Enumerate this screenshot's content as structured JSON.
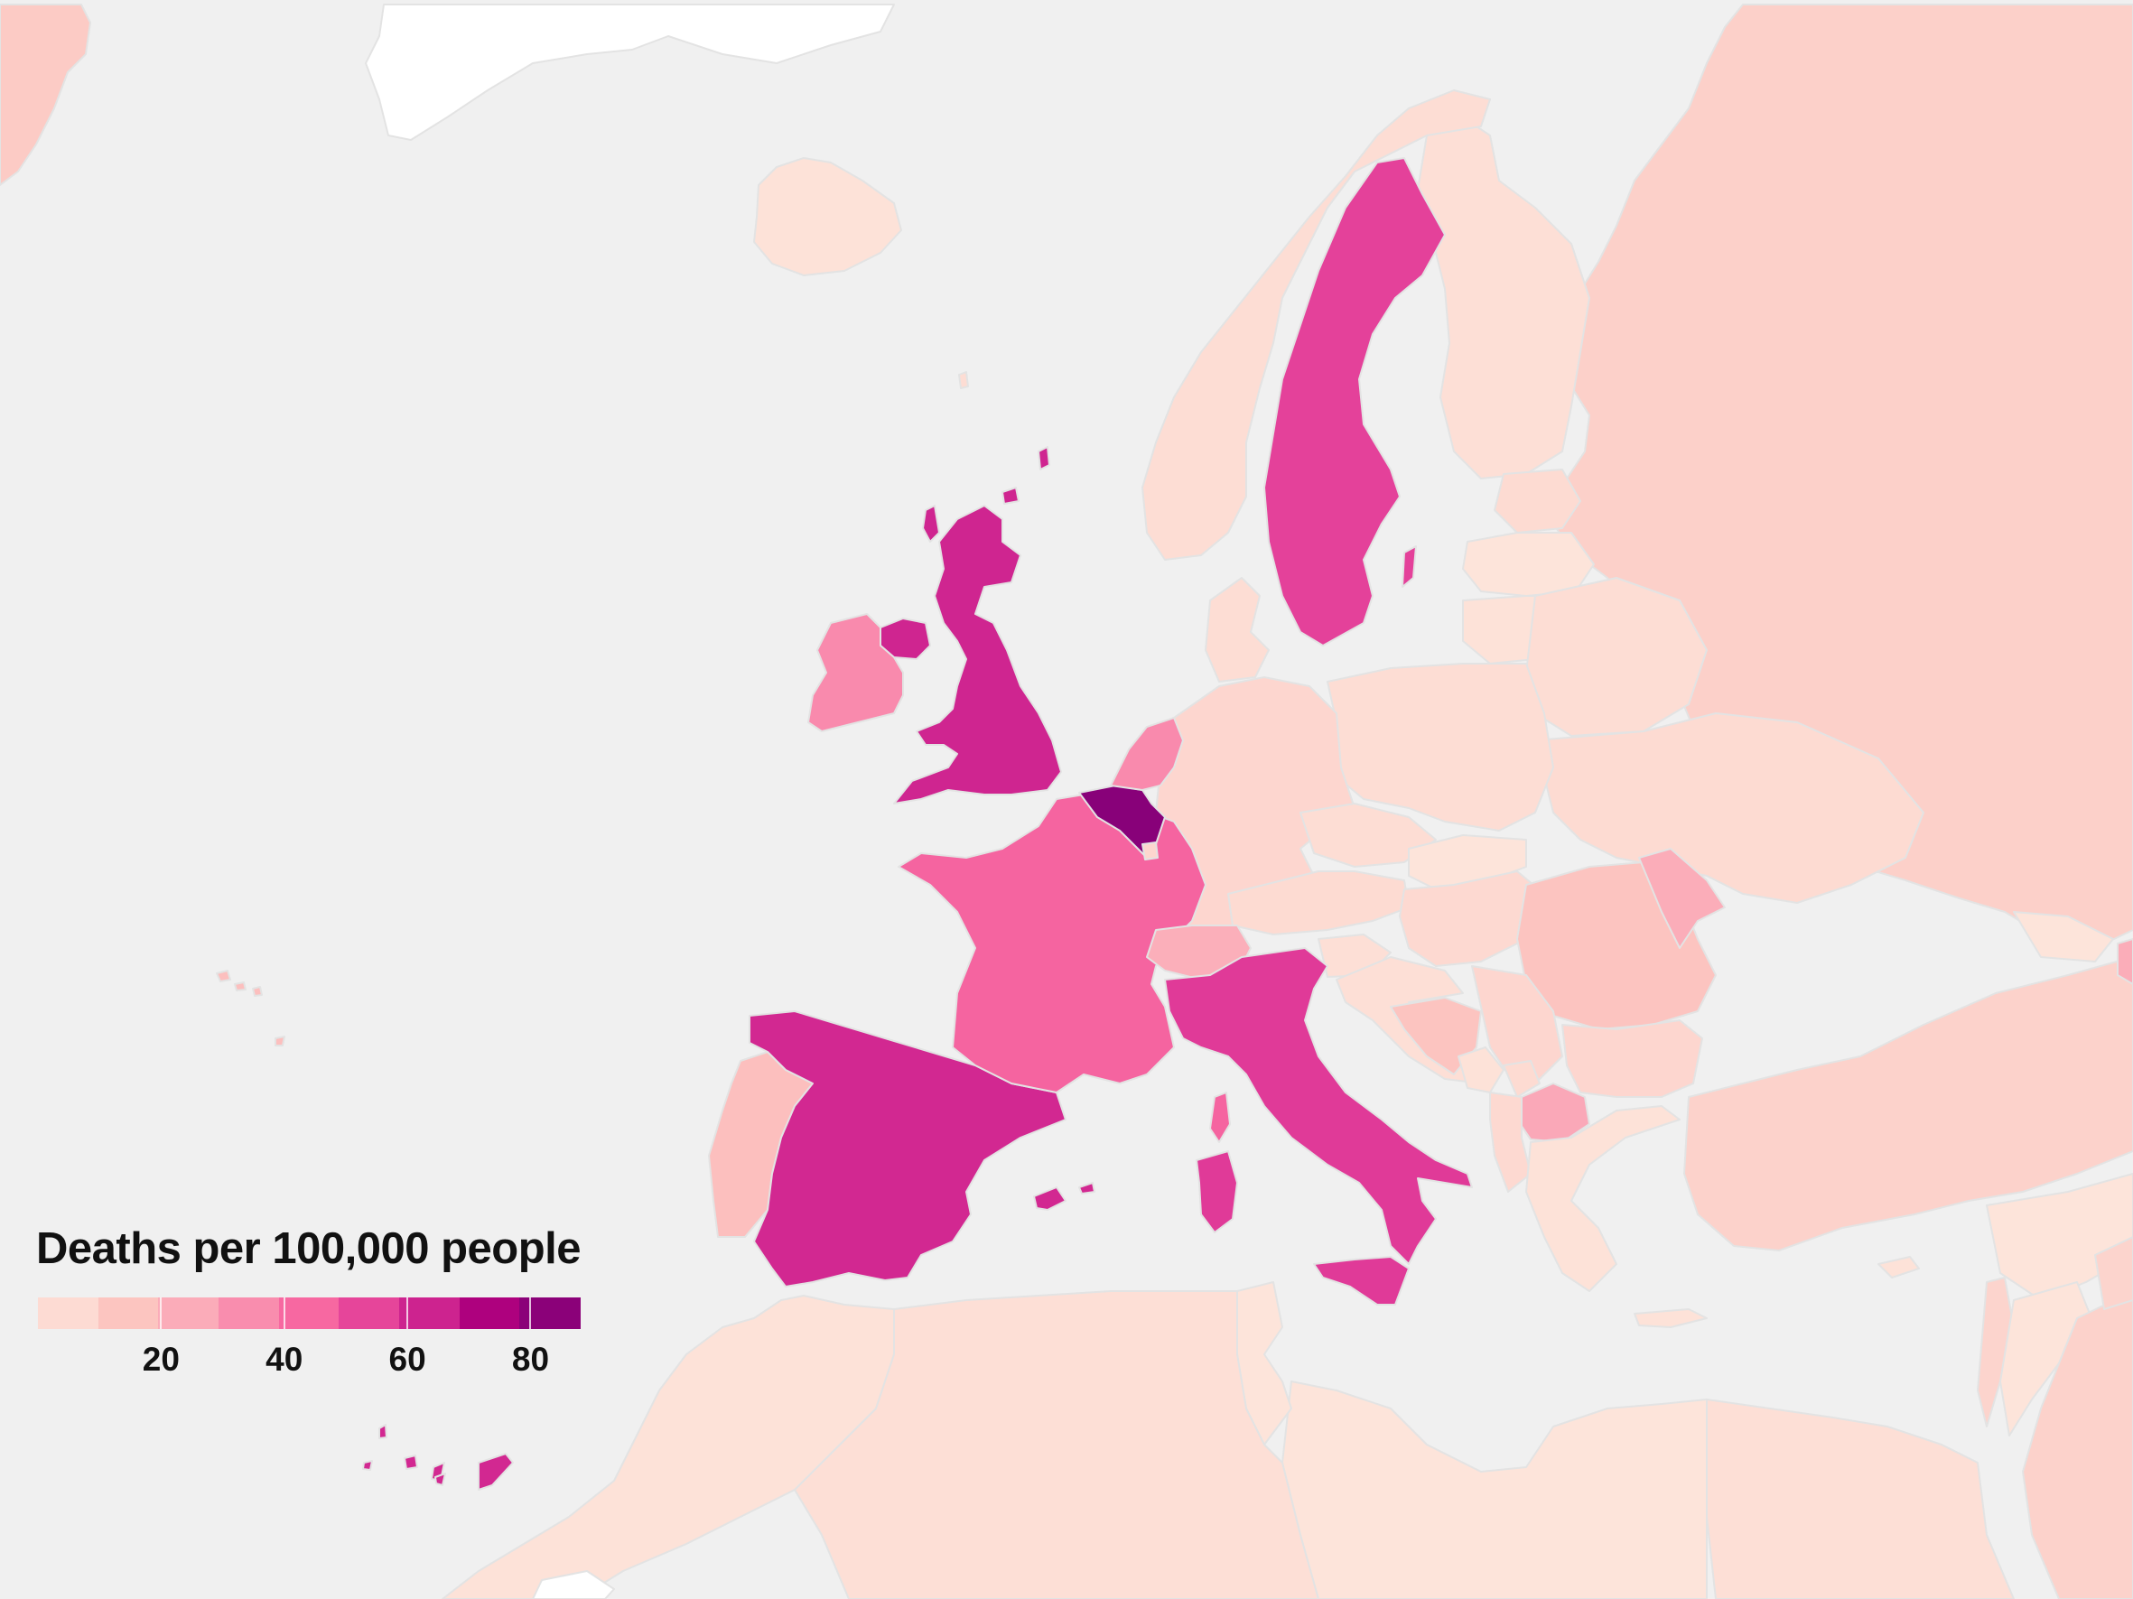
{
  "legend": {
    "title": "Deaths per 100,000 people",
    "min": 0,
    "max": 88,
    "ticks": [
      20,
      40,
      60,
      80
    ],
    "tick_labels": [
      "20",
      "40",
      "60",
      "80"
    ]
  },
  "colors": {
    "ocean": "#f0f0f0",
    "no_data": "#ffffff",
    "border": "#e3e3e3",
    "scale": [
      "#fde6dc",
      "#fcc5c0",
      "#fa9fb5",
      "#f768a1",
      "#dd3497",
      "#ae017e",
      "#7a0177"
    ]
  },
  "regions": [
    {
      "name": "Belgium",
      "value": 84
    },
    {
      "name": "United Kingdom",
      "value": 63
    },
    {
      "name": "Spain",
      "value": 62
    },
    {
      "name": "Italy",
      "value": 57
    },
    {
      "name": "Sweden",
      "value": 55
    },
    {
      "name": "France",
      "value": 45
    },
    {
      "name": "Netherlands",
      "value": 35
    },
    {
      "name": "Ireland",
      "value": 35
    },
    {
      "name": "North Macedonia",
      "value": 26
    },
    {
      "name": "Moldova",
      "value": 24
    },
    {
      "name": "Switzerland",
      "value": 23
    },
    {
      "name": "Portugal",
      "value": 17
    },
    {
      "name": "Romania",
      "value": 15
    },
    {
      "name": "Bosnia and Herzegovina",
      "value": 15
    },
    {
      "name": "Greenland",
      "value": 12
    },
    {
      "name": "Russia",
      "value": 10
    },
    {
      "name": "Turkey",
      "value": 9
    },
    {
      "name": "Bulgaria",
      "value": 7
    },
    {
      "name": "Serbia",
      "value": 7
    },
    {
      "name": "Albania",
      "value": 6
    },
    {
      "name": "Germany",
      "value": 7
    },
    {
      "name": "Austria",
      "value": 5
    },
    {
      "name": "Poland",
      "value": 4
    },
    {
      "name": "Czechia",
      "value": 4
    },
    {
      "name": "Hungary",
      "value": 6
    },
    {
      "name": "Denmark",
      "value": 4
    },
    {
      "name": "Norway",
      "value": 4
    },
    {
      "name": "Finland",
      "value": 3
    },
    {
      "name": "Ukraine",
      "value": 5
    },
    {
      "name": "Belarus",
      "value": 4
    },
    {
      "name": "Lithuania",
      "value": 2
    },
    {
      "name": "Latvia",
      "value": 1
    },
    {
      "name": "Estonia",
      "value": 5
    },
    {
      "name": "Slovakia",
      "value": 1
    },
    {
      "name": "Slovenia",
      "value": 3
    },
    {
      "name": "Croatia",
      "value": 3
    },
    {
      "name": "Greece",
      "value": 2
    },
    {
      "name": "Iceland",
      "value": 2
    },
    {
      "name": "Morocco",
      "value": 2
    },
    {
      "name": "Algeria",
      "value": 3
    },
    {
      "name": "Tunisia",
      "value": 1
    },
    {
      "name": "Libya",
      "value": 1
    },
    {
      "name": "Egypt",
      "value": 3
    },
    {
      "name": "Israel",
      "value": 8
    },
    {
      "name": "Jordan",
      "value": 1
    },
    {
      "name": "Syria",
      "value": 1
    },
    {
      "name": "Cyprus",
      "value": 2
    },
    {
      "name": "Georgia",
      "value": 1
    },
    {
      "name": "Saudi Arabia",
      "value": 9
    },
    {
      "name": "Montenegro",
      "value": 2
    },
    {
      "name": "Kosovo",
      "value": 5
    }
  ]
}
